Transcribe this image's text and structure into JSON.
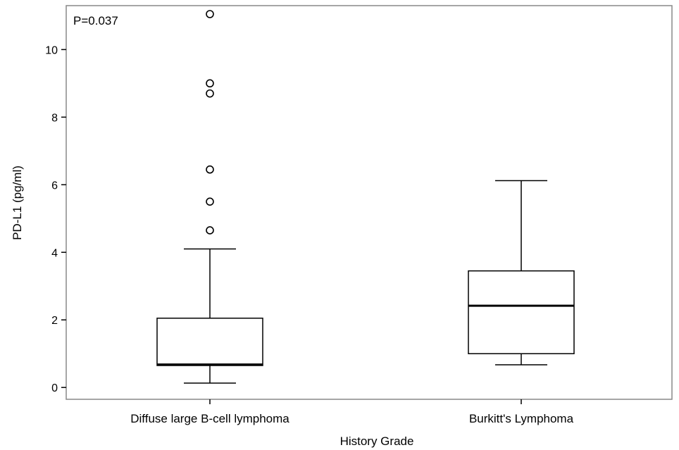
{
  "chart_data": {
    "type": "box",
    "annotation": "P=0.037",
    "xlabel": "History Grade",
    "ylabel": "PD-L1 (pg/ml)",
    "ylim": [
      -0.35,
      11.3
    ],
    "yticks": [
      "0",
      "2",
      "4",
      "6",
      "8",
      "10"
    ],
    "grid": false,
    "categories": [
      "Diffuse large B-cell lymphoma",
      "Burkitt's Lymphoma"
    ],
    "boxes": [
      {
        "category": "Diffuse large B-cell lymphoma",
        "whisker_low": 0.13,
        "q1": 0.65,
        "median": 0.68,
        "q3": 2.05,
        "whisker_high": 4.1,
        "outliers": [
          4.65,
          5.5,
          6.45,
          8.7,
          9.0,
          11.05
        ]
      },
      {
        "category": "Burkitt's Lymphoma",
        "whisker_low": 0.67,
        "q1": 1.0,
        "median": 2.42,
        "q3": 3.45,
        "whisker_high": 6.12,
        "outliers": []
      }
    ],
    "colors": {
      "stroke": "#000000",
      "frame": "#888888",
      "background": "#ffffff"
    }
  }
}
